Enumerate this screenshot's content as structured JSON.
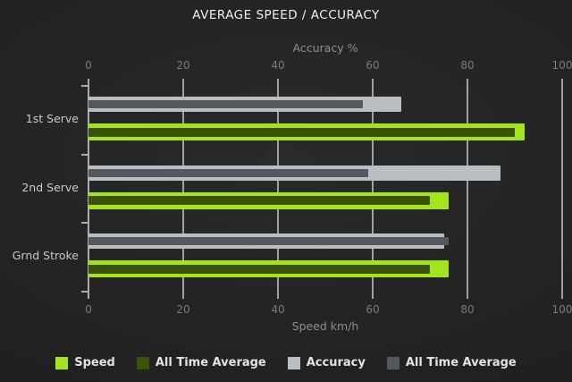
{
  "title": "AVERAGE SPEED / ACCURACY",
  "chart_data": {
    "type": "bar",
    "orientation": "horizontal",
    "grid": true,
    "categories": [
      "1st Serve",
      "2nd Serve",
      "Grnd Stroke"
    ],
    "axes": {
      "top": {
        "label": "Accuracy %",
        "ticks": [
          0,
          20,
          40,
          60,
          80,
          100
        ],
        "range": [
          0,
          100
        ]
      },
      "bottom": {
        "label": "Speed km/h",
        "ticks": [
          0,
          20,
          40,
          60,
          80,
          100
        ],
        "range": [
          0,
          100
        ]
      }
    },
    "series": [
      {
        "name": "Speed",
        "axis": "bottom",
        "color": "#a4e41d",
        "values": [
          92,
          76,
          76
        ]
      },
      {
        "name": "All Time Average",
        "axis": "bottom",
        "color": "#3a5208",
        "values": [
          90,
          72,
          72
        ],
        "overlay_of": "Speed"
      },
      {
        "name": "Accuracy",
        "axis": "top",
        "color": "#b9bec2",
        "values": [
          66,
          87,
          75
        ]
      },
      {
        "name": "All Time Average",
        "axis": "top",
        "color": "#53595e",
        "values": [
          58,
          59,
          76
        ],
        "overlay_of": "Accuracy"
      }
    ],
    "legend": [
      {
        "label": "Speed",
        "color": "#a4e41d"
      },
      {
        "label": "All Time Average",
        "color": "#3a5208"
      },
      {
        "label": "Accuracy",
        "color": "#b9bec2"
      },
      {
        "label": "All Time Average",
        "color": "#53595e"
      }
    ],
    "legend_position": "bottom"
  },
  "colors": {
    "background_center": "#2a2a2a",
    "background_edge": "#191919",
    "gridline": "#a0a0a0",
    "title_text": "#efefef",
    "tick_text": "#7a7a7a",
    "axis_title_text": "#8e8e8e",
    "category_text": "#c9c9c9",
    "legend_text": "#e2e2e2"
  }
}
